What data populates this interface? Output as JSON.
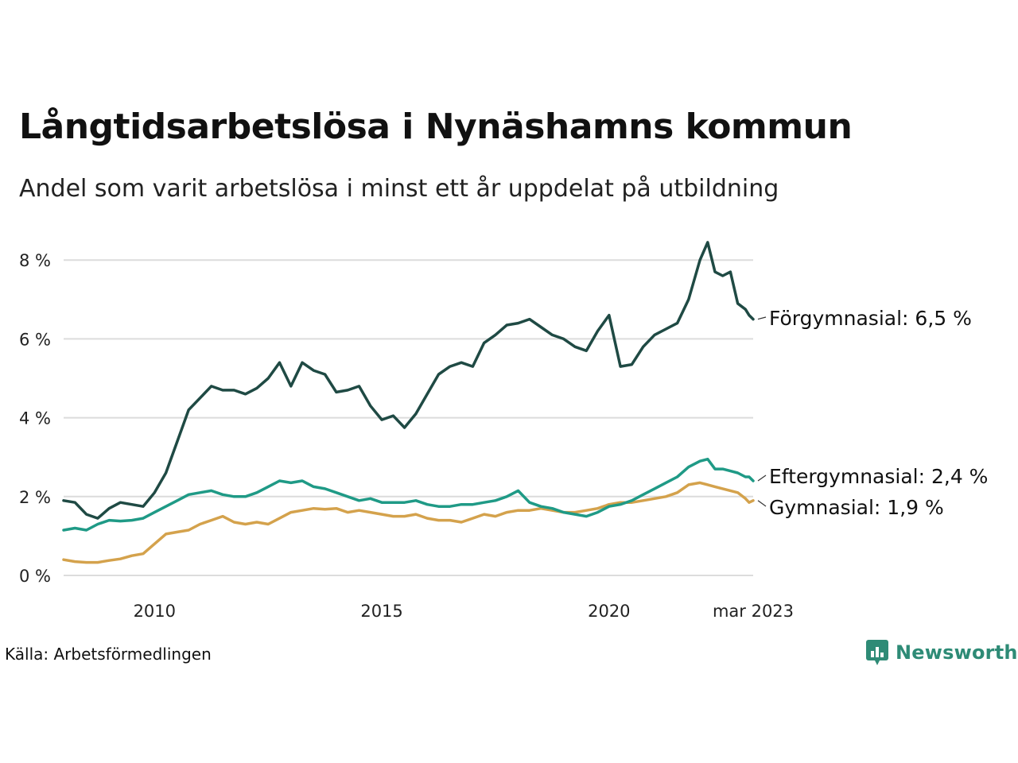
{
  "title": "Långtidsarbetslösa i Nynäshamns kommun",
  "subtitle": "Andel som varit arbetslösa i minst ett år uppdelat på utbildning",
  "source": "Källa: Arbetsförmedlingen",
  "brand": {
    "name": "Newsworthy",
    "icon": "newsworthy-logo-icon",
    "color": "#2e8b76"
  },
  "chart_data": {
    "type": "line",
    "x_start": "2008-01",
    "x_end": "2023-03",
    "x_ticks": [
      {
        "x": 2010.0,
        "label": "2010"
      },
      {
        "x": 2015.0,
        "label": "2015"
      },
      {
        "x": 2020.0,
        "label": "2020"
      },
      {
        "x": 2023.17,
        "label": "mar 2023"
      }
    ],
    "ylim": [
      0,
      8.5
    ],
    "y_ticks": [
      {
        "value": 0,
        "label": "0 %"
      },
      {
        "value": 2,
        "label": "2 %"
      },
      {
        "value": 4,
        "label": "4 %"
      },
      {
        "value": 6,
        "label": "6 %"
      },
      {
        "value": 8,
        "label": "8 %"
      }
    ],
    "grid": true,
    "legend": "direct labels at line ends",
    "series": [
      {
        "name": "Förgymnasial",
        "end_label": "Förgymnasial: 6,5 %",
        "color": "#1f4a44",
        "points": [
          [
            2008.0,
            1.9
          ],
          [
            2008.25,
            1.85
          ],
          [
            2008.5,
            1.55
          ],
          [
            2008.75,
            1.45
          ],
          [
            2009.0,
            1.7
          ],
          [
            2009.25,
            1.85
          ],
          [
            2009.5,
            1.8
          ],
          [
            2009.75,
            1.75
          ],
          [
            2010.0,
            2.1
          ],
          [
            2010.25,
            2.6
          ],
          [
            2010.5,
            3.4
          ],
          [
            2010.75,
            4.2
          ],
          [
            2011.0,
            4.5
          ],
          [
            2011.25,
            4.8
          ],
          [
            2011.5,
            4.7
          ],
          [
            2011.75,
            4.7
          ],
          [
            2012.0,
            4.6
          ],
          [
            2012.25,
            4.75
          ],
          [
            2012.5,
            5.0
          ],
          [
            2012.75,
            5.4
          ],
          [
            2013.0,
            4.8
          ],
          [
            2013.25,
            5.4
          ],
          [
            2013.5,
            5.2
          ],
          [
            2013.75,
            5.1
          ],
          [
            2014.0,
            4.65
          ],
          [
            2014.25,
            4.7
          ],
          [
            2014.5,
            4.8
          ],
          [
            2014.75,
            4.3
          ],
          [
            2015.0,
            3.95
          ],
          [
            2015.25,
            4.05
          ],
          [
            2015.5,
            3.75
          ],
          [
            2015.75,
            4.1
          ],
          [
            2016.0,
            4.6
          ],
          [
            2016.25,
            5.1
          ],
          [
            2016.5,
            5.3
          ],
          [
            2016.75,
            5.4
          ],
          [
            2017.0,
            5.3
          ],
          [
            2017.25,
            5.9
          ],
          [
            2017.5,
            6.1
          ],
          [
            2017.75,
            6.35
          ],
          [
            2018.0,
            6.4
          ],
          [
            2018.25,
            6.5
          ],
          [
            2018.5,
            6.3
          ],
          [
            2018.75,
            6.1
          ],
          [
            2019.0,
            6.0
          ],
          [
            2019.25,
            5.8
          ],
          [
            2019.5,
            5.7
          ],
          [
            2019.75,
            6.2
          ],
          [
            2020.0,
            6.6
          ],
          [
            2020.25,
            5.3
          ],
          [
            2020.5,
            5.35
          ],
          [
            2020.75,
            5.8
          ],
          [
            2021.0,
            6.1
          ],
          [
            2021.25,
            6.25
          ],
          [
            2021.5,
            6.4
          ],
          [
            2021.75,
            7.0
          ],
          [
            2022.0,
            8.0
          ],
          [
            2022.17,
            8.45
          ],
          [
            2022.33,
            7.7
          ],
          [
            2022.5,
            7.6
          ],
          [
            2022.67,
            7.7
          ],
          [
            2022.83,
            6.9
          ],
          [
            2023.0,
            6.75
          ],
          [
            2023.08,
            6.6
          ],
          [
            2023.17,
            6.5
          ]
        ]
      },
      {
        "name": "Eftergymnasial",
        "end_label": "Eftergymnasial: 2,4 %",
        "color": "#1f9a86",
        "points": [
          [
            2008.0,
            1.15
          ],
          [
            2008.25,
            1.2
          ],
          [
            2008.5,
            1.15
          ],
          [
            2008.75,
            1.3
          ],
          [
            2009.0,
            1.4
          ],
          [
            2009.25,
            1.38
          ],
          [
            2009.5,
            1.4
          ],
          [
            2009.75,
            1.45
          ],
          [
            2010.0,
            1.6
          ],
          [
            2010.25,
            1.75
          ],
          [
            2010.5,
            1.9
          ],
          [
            2010.75,
            2.05
          ],
          [
            2011.0,
            2.1
          ],
          [
            2011.25,
            2.15
          ],
          [
            2011.5,
            2.05
          ],
          [
            2011.75,
            2.0
          ],
          [
            2012.0,
            2.0
          ],
          [
            2012.25,
            2.1
          ],
          [
            2012.5,
            2.25
          ],
          [
            2012.75,
            2.4
          ],
          [
            2013.0,
            2.35
          ],
          [
            2013.25,
            2.4
          ],
          [
            2013.5,
            2.25
          ],
          [
            2013.75,
            2.2
          ],
          [
            2014.0,
            2.1
          ],
          [
            2014.25,
            2.0
          ],
          [
            2014.5,
            1.9
          ],
          [
            2014.75,
            1.95
          ],
          [
            2015.0,
            1.85
          ],
          [
            2015.25,
            1.85
          ],
          [
            2015.5,
            1.85
          ],
          [
            2015.75,
            1.9
          ],
          [
            2016.0,
            1.8
          ],
          [
            2016.25,
            1.75
          ],
          [
            2016.5,
            1.75
          ],
          [
            2016.75,
            1.8
          ],
          [
            2017.0,
            1.8
          ],
          [
            2017.25,
            1.85
          ],
          [
            2017.5,
            1.9
          ],
          [
            2017.75,
            2.0
          ],
          [
            2018.0,
            2.15
          ],
          [
            2018.25,
            1.85
          ],
          [
            2018.5,
            1.75
          ],
          [
            2018.75,
            1.7
          ],
          [
            2019.0,
            1.6
          ],
          [
            2019.25,
            1.55
          ],
          [
            2019.5,
            1.5
          ],
          [
            2019.75,
            1.6
          ],
          [
            2020.0,
            1.75
          ],
          [
            2020.25,
            1.8
          ],
          [
            2020.5,
            1.9
          ],
          [
            2020.75,
            2.05
          ],
          [
            2021.0,
            2.2
          ],
          [
            2021.25,
            2.35
          ],
          [
            2021.5,
            2.5
          ],
          [
            2021.75,
            2.75
          ],
          [
            2022.0,
            2.9
          ],
          [
            2022.17,
            2.95
          ],
          [
            2022.33,
            2.7
          ],
          [
            2022.5,
            2.7
          ],
          [
            2022.67,
            2.65
          ],
          [
            2022.83,
            2.6
          ],
          [
            2023.0,
            2.5
          ],
          [
            2023.08,
            2.5
          ],
          [
            2023.17,
            2.4
          ]
        ]
      },
      {
        "name": "Gymnasial",
        "end_label": "Gymnasial: 1,9 %",
        "color": "#d4a24c",
        "points": [
          [
            2008.0,
            0.4
          ],
          [
            2008.25,
            0.35
          ],
          [
            2008.5,
            0.33
          ],
          [
            2008.75,
            0.33
          ],
          [
            2009.0,
            0.38
          ],
          [
            2009.25,
            0.42
          ],
          [
            2009.5,
            0.5
          ],
          [
            2009.75,
            0.55
          ],
          [
            2010.0,
            0.8
          ],
          [
            2010.25,
            1.05
          ],
          [
            2010.5,
            1.1
          ],
          [
            2010.75,
            1.15
          ],
          [
            2011.0,
            1.3
          ],
          [
            2011.25,
            1.4
          ],
          [
            2011.5,
            1.5
          ],
          [
            2011.75,
            1.35
          ],
          [
            2012.0,
            1.3
          ],
          [
            2012.25,
            1.35
          ],
          [
            2012.5,
            1.3
          ],
          [
            2012.75,
            1.45
          ],
          [
            2013.0,
            1.6
          ],
          [
            2013.25,
            1.65
          ],
          [
            2013.5,
            1.7
          ],
          [
            2013.75,
            1.68
          ],
          [
            2014.0,
            1.7
          ],
          [
            2014.25,
            1.6
          ],
          [
            2014.5,
            1.65
          ],
          [
            2014.75,
            1.6
          ],
          [
            2015.0,
            1.55
          ],
          [
            2015.25,
            1.5
          ],
          [
            2015.5,
            1.5
          ],
          [
            2015.75,
            1.55
          ],
          [
            2016.0,
            1.45
          ],
          [
            2016.25,
            1.4
          ],
          [
            2016.5,
            1.4
          ],
          [
            2016.75,
            1.35
          ],
          [
            2017.0,
            1.45
          ],
          [
            2017.25,
            1.55
          ],
          [
            2017.5,
            1.5
          ],
          [
            2017.75,
            1.6
          ],
          [
            2018.0,
            1.65
          ],
          [
            2018.25,
            1.65
          ],
          [
            2018.5,
            1.7
          ],
          [
            2018.75,
            1.65
          ],
          [
            2019.0,
            1.6
          ],
          [
            2019.25,
            1.6
          ],
          [
            2019.5,
            1.65
          ],
          [
            2019.75,
            1.7
          ],
          [
            2020.0,
            1.8
          ],
          [
            2020.25,
            1.85
          ],
          [
            2020.5,
            1.85
          ],
          [
            2020.75,
            1.9
          ],
          [
            2021.0,
            1.95
          ],
          [
            2021.25,
            2.0
          ],
          [
            2021.5,
            2.1
          ],
          [
            2021.75,
            2.3
          ],
          [
            2022.0,
            2.35
          ],
          [
            2022.17,
            2.3
          ],
          [
            2022.33,
            2.25
          ],
          [
            2022.5,
            2.2
          ],
          [
            2022.67,
            2.15
          ],
          [
            2022.83,
            2.1
          ],
          [
            2023.0,
            1.95
          ],
          [
            2023.08,
            1.85
          ],
          [
            2023.17,
            1.9
          ]
        ]
      }
    ]
  }
}
